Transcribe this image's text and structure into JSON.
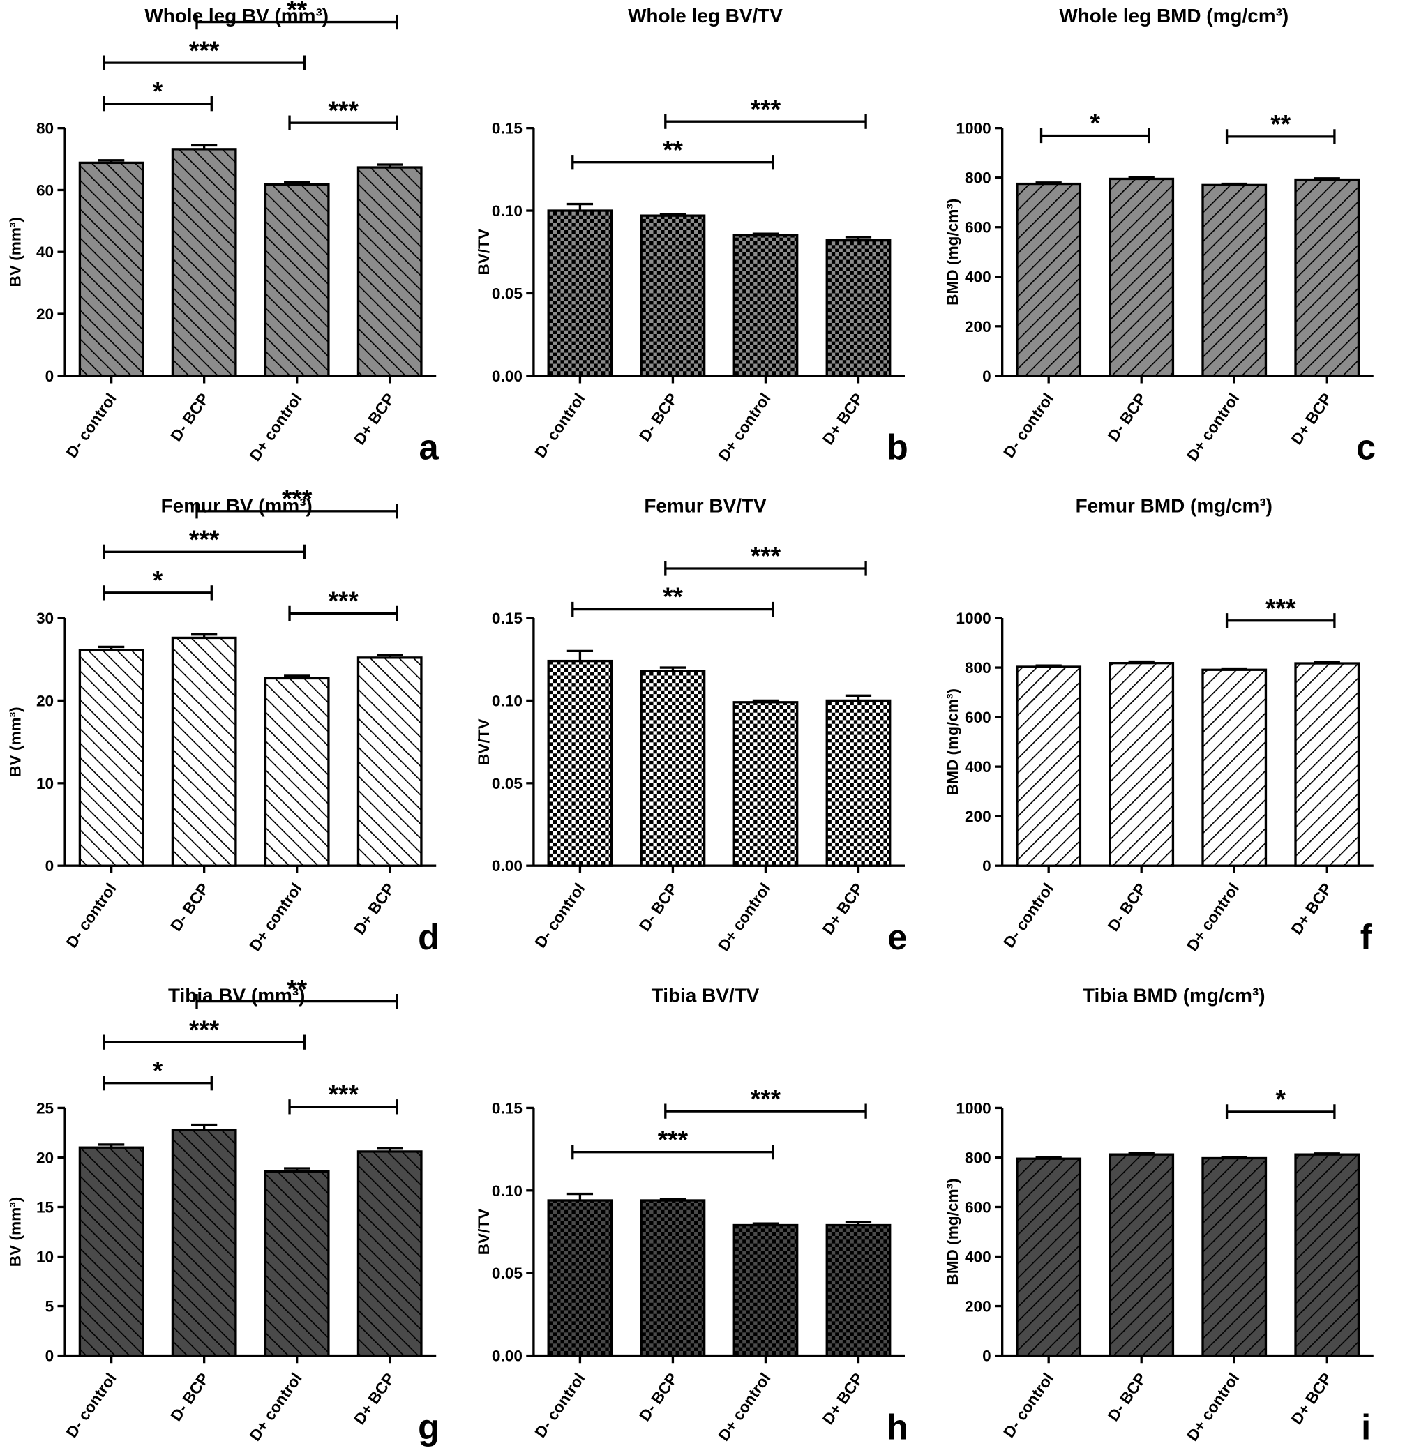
{
  "chart_data": [
    {
      "type": "bar",
      "title": "Whole leg BV (mm³)",
      "y_label": "BV (mm³)",
      "panel": "a",
      "color": "#8c8c8c",
      "pattern": "hatch-back",
      "categories": [
        "D- control",
        "D- BCP",
        "D+ control",
        "D+ BCP"
      ],
      "values": [
        68.8,
        73.2,
        61.8,
        67.3
      ],
      "errors": [
        0.8,
        1.2,
        0.8,
        0.9
      ],
      "ylim": [
        0,
        80
      ],
      "yticks": [
        0,
        20,
        40,
        60,
        80
      ],
      "annotations": [
        {
          "from": 0,
          "to": 1,
          "text": "*"
        },
        {
          "from": 2,
          "to": 3,
          "text": "***"
        },
        {
          "from": 0,
          "to": 2,
          "text": "***"
        },
        {
          "from": 1,
          "to": 3,
          "text": "**"
        }
      ]
    },
    {
      "type": "bar",
      "title": "Whole leg BV/TV",
      "y_label": "BV/TV",
      "panel": "b",
      "color": "#8c8c8c",
      "pattern": "check",
      "categories": [
        "D- control",
        "D- BCP",
        "D+ control",
        "D+ BCP"
      ],
      "values": [
        0.1,
        0.097,
        0.085,
        0.082
      ],
      "errors": [
        0.004,
        0.001,
        0.001,
        0.002
      ],
      "ylim": [
        0,
        0.15
      ],
      "yticks": [
        {
          "value": 0,
          "label": "0.00"
        },
        0.05,
        {
          "value": 0.1,
          "label": "0.10"
        },
        0.15
      ],
      "annotations": [
        {
          "from": 0,
          "to": 2,
          "text": "**"
        },
        {
          "from": 1,
          "to": 3,
          "text": "***"
        }
      ]
    },
    {
      "type": "bar",
      "title": "Whole leg BMD (mg/cm³)",
      "y_label": "BMD (mg/cm³)",
      "panel": "c",
      "color": "#8c8c8c",
      "pattern": "hatch-fwd",
      "categories": [
        "D- control",
        "D- BCP",
        "D+ control",
        "D+ BCP"
      ],
      "values": [
        775,
        795,
        770,
        792
      ],
      "errors": [
        5,
        6,
        5,
        5
      ],
      "ylim": [
        0,
        1000
      ],
      "yticks": [
        0,
        200,
        400,
        600,
        800,
        1000
      ],
      "annotations": [
        {
          "from": 0,
          "to": 1,
          "text": "*"
        },
        {
          "from": 2,
          "to": 3,
          "text": "**"
        }
      ]
    },
    {
      "type": "bar",
      "title": "Femur BV (mm³)",
      "y_label": "BV (mm³)",
      "panel": "d",
      "color": "#ffffff",
      "pattern": "hatch-back",
      "categories": [
        "D- control",
        "D- BCP",
        "D+ control",
        "D+ BCP"
      ],
      "values": [
        26.1,
        27.6,
        22.7,
        25.2
      ],
      "errors": [
        0.4,
        0.4,
        0.3,
        0.3
      ],
      "ylim": [
        0,
        30
      ],
      "yticks": [
        0,
        10,
        20,
        30
      ],
      "annotations": [
        {
          "from": 0,
          "to": 1,
          "text": "*"
        },
        {
          "from": 2,
          "to": 3,
          "text": "***"
        },
        {
          "from": 0,
          "to": 2,
          "text": "***"
        },
        {
          "from": 1,
          "to": 3,
          "text": "***"
        }
      ]
    },
    {
      "type": "bar",
      "title": "Femur BV/TV",
      "y_label": "BV/TV",
      "panel": "e",
      "color": "#ffffff",
      "pattern": "check",
      "categories": [
        "D- control",
        "D- BCP",
        "D+ control",
        "D+ BCP"
      ],
      "values": [
        0.124,
        0.118,
        0.099,
        0.1
      ],
      "errors": [
        0.006,
        0.002,
        0.001,
        0.003
      ],
      "ylim": [
        0,
        0.15
      ],
      "yticks": [
        {
          "value": 0,
          "label": "0.00"
        },
        0.05,
        {
          "value": 0.1,
          "label": "0.10"
        },
        0.15
      ],
      "annotations": [
        {
          "from": 0,
          "to": 2,
          "text": "**"
        },
        {
          "from": 1,
          "to": 3,
          "text": "***"
        }
      ]
    },
    {
      "type": "bar",
      "title": "Femur BMD (mg/cm³)",
      "y_label": "BMD (mg/cm³)",
      "panel": "f",
      "color": "#ffffff",
      "pattern": "hatch-fwd",
      "categories": [
        "D- control",
        "D- BCP",
        "D+ control",
        "D+ BCP"
      ],
      "values": [
        803,
        818,
        791,
        817
      ],
      "errors": [
        5,
        6,
        5,
        4
      ],
      "ylim": [
        0,
        1000
      ],
      "yticks": [
        0,
        200,
        400,
        600,
        800,
        1000
      ],
      "annotations": [
        {
          "from": 2,
          "to": 3,
          "text": "***"
        }
      ]
    },
    {
      "type": "bar",
      "title": "Tibia BV (mm³)",
      "y_label": "BV (mm³)",
      "panel": "g",
      "color": "#4a4a4a",
      "pattern": "hatch-back",
      "categories": [
        "D- control",
        "D- BCP",
        "D+ control",
        "D+ BCP"
      ],
      "values": [
        21.0,
        22.8,
        18.6,
        20.6
      ],
      "errors": [
        0.3,
        0.5,
        0.3,
        0.3
      ],
      "ylim": [
        0,
        25
      ],
      "yticks": [
        0,
        5,
        10,
        15,
        20,
        25
      ],
      "annotations": [
        {
          "from": 0,
          "to": 1,
          "text": "*"
        },
        {
          "from": 2,
          "to": 3,
          "text": "***"
        },
        {
          "from": 0,
          "to": 2,
          "text": "***"
        },
        {
          "from": 1,
          "to": 3,
          "text": "**"
        }
      ]
    },
    {
      "type": "bar",
      "title": "Tibia BV/TV",
      "y_label": "BV/TV",
      "panel": "h",
      "color": "#4a4a4a",
      "pattern": "check",
      "categories": [
        "D- control",
        "D- BCP",
        "D+ control",
        "D+ BCP"
      ],
      "values": [
        0.094,
        0.094,
        0.079,
        0.079
      ],
      "errors": [
        0.004,
        0.001,
        0.001,
        0.002
      ],
      "ylim": [
        0,
        0.15
      ],
      "yticks": [
        {
          "value": 0,
          "label": "0.00"
        },
        0.05,
        {
          "value": 0.1,
          "label": "0.10"
        },
        0.15
      ],
      "annotations": [
        {
          "from": 0,
          "to": 2,
          "text": "***"
        },
        {
          "from": 1,
          "to": 3,
          "text": "***"
        }
      ]
    },
    {
      "type": "bar",
      "title": "Tibia BMD (mg/cm³)",
      "y_label": "BMD (mg/cm³)",
      "panel": "i",
      "color": "#4a4a4a",
      "pattern": "hatch-fwd",
      "categories": [
        "D- control",
        "D- BCP",
        "D+ control",
        "D+ BCP"
      ],
      "values": [
        795,
        812,
        797,
        812
      ],
      "errors": [
        5,
        5,
        5,
        4
      ],
      "ylim": [
        0,
        1000
      ],
      "yticks": [
        0,
        200,
        400,
        600,
        800,
        1000
      ],
      "annotations": [
        {
          "from": 2,
          "to": 3,
          "text": "*"
        }
      ]
    }
  ]
}
